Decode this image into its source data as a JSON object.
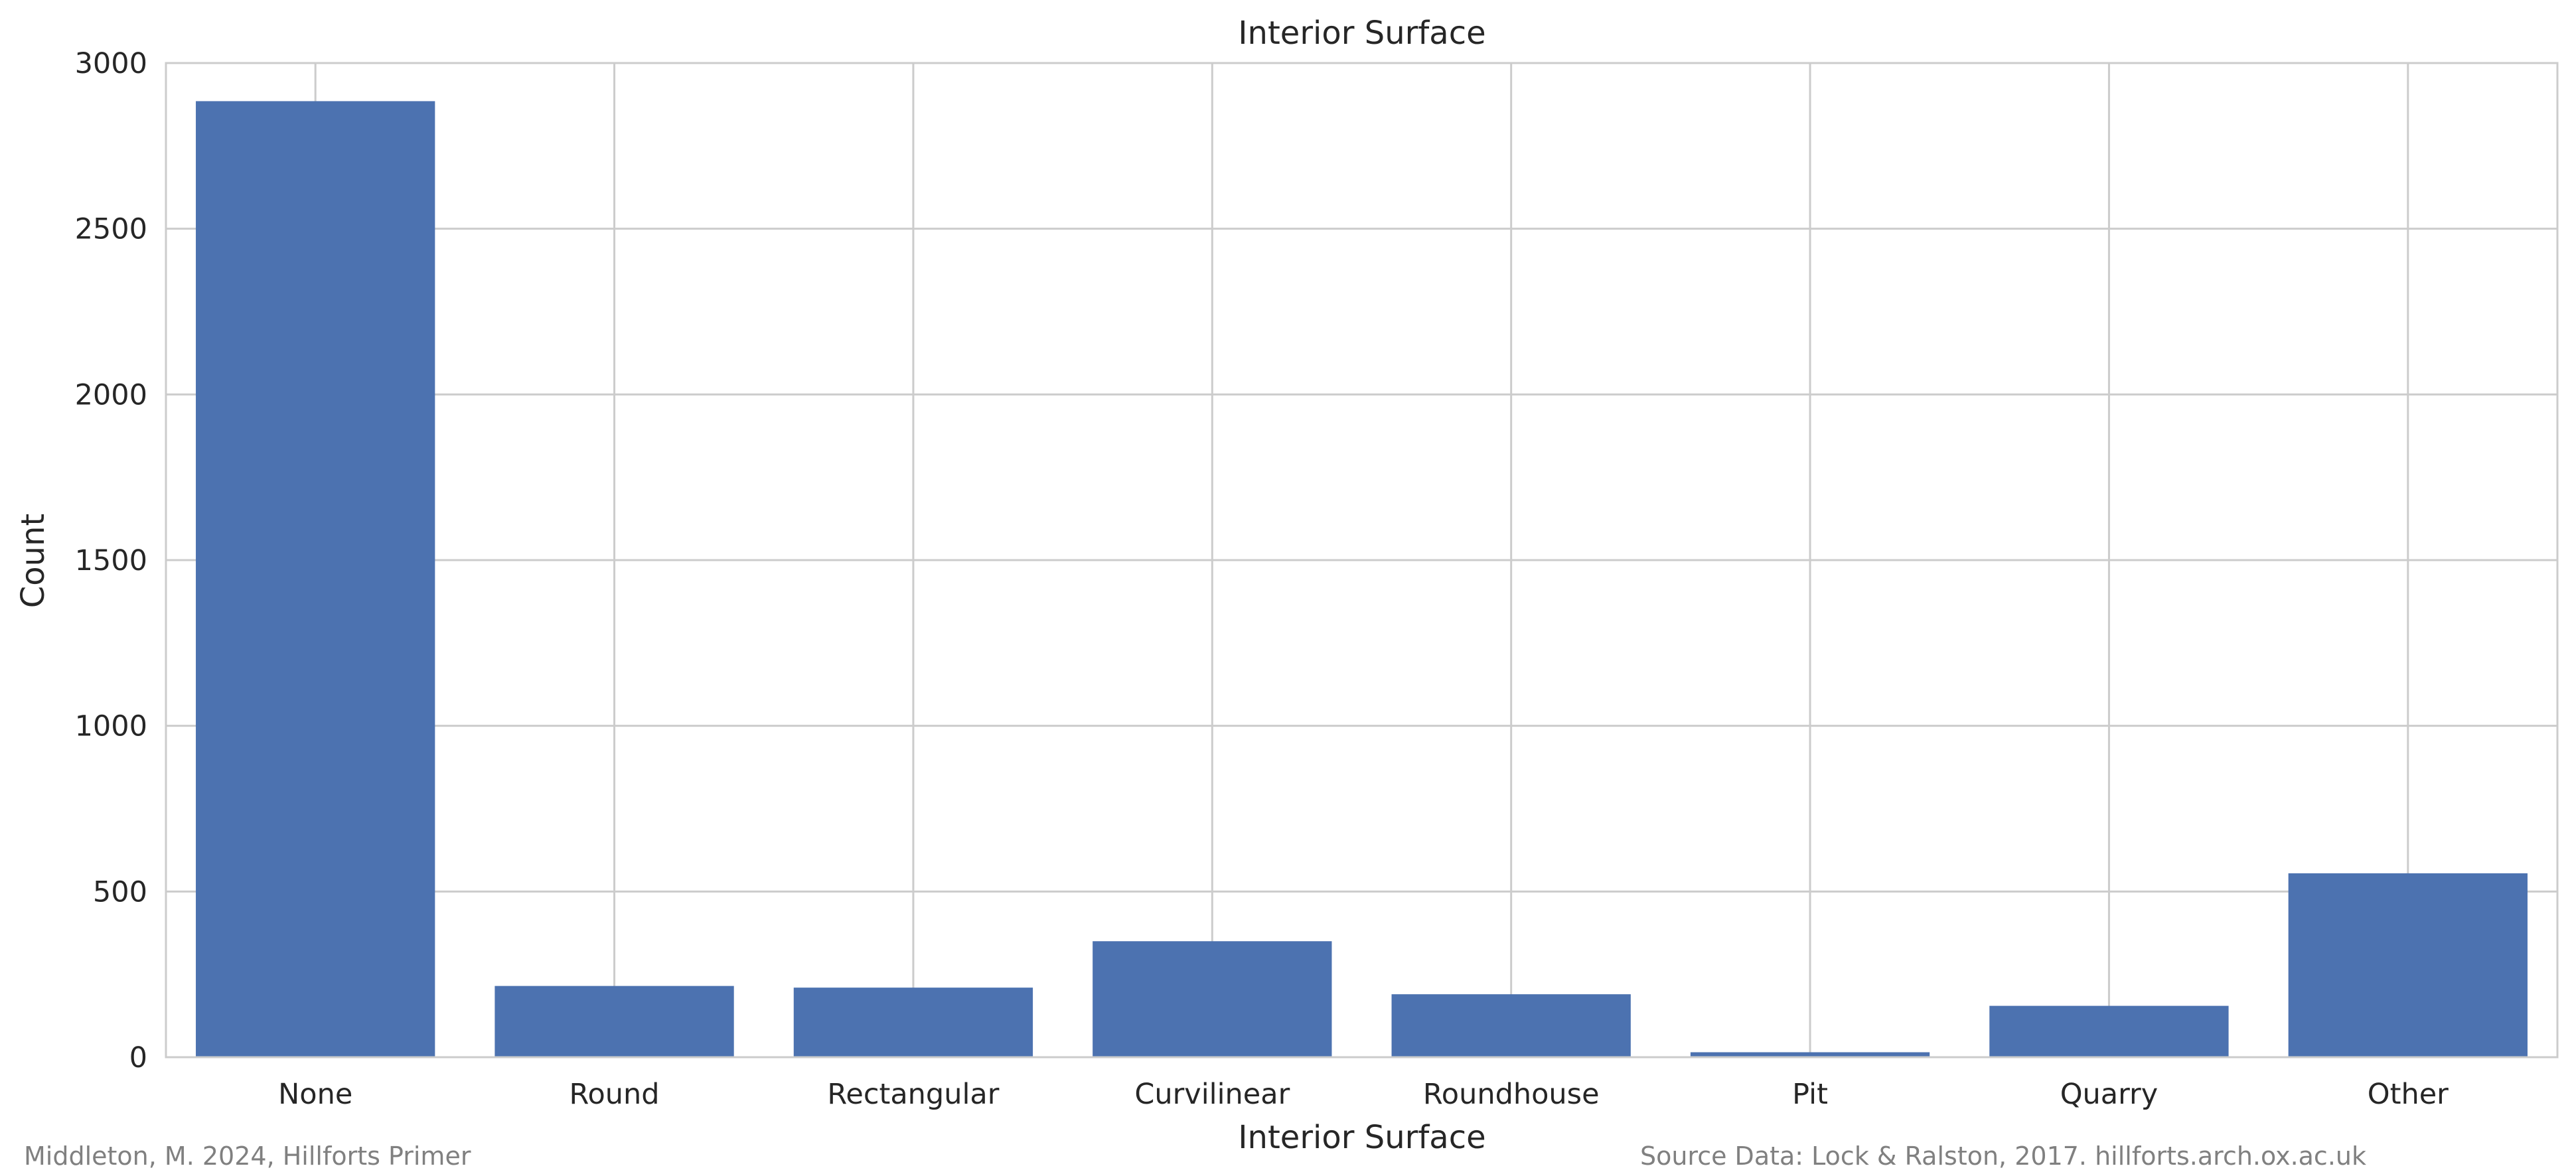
{
  "chart_data": {
    "type": "bar",
    "title": "Interior Surface",
    "xlabel": "Interior Surface",
    "ylabel": "Count",
    "categories": [
      "None",
      "Round",
      "Rectangular",
      "Curvilinear",
      "Roundhouse",
      "Pit",
      "Quarry",
      "Other"
    ],
    "values": [
      2885,
      215,
      210,
      350,
      190,
      15,
      155,
      555
    ],
    "ylim": [
      0,
      3000
    ],
    "yticks": [
      0,
      500,
      1000,
      1500,
      2000,
      2500,
      3000
    ],
    "grid": true,
    "bar_color": "#4c72b0",
    "grid_color": "#cccccc"
  },
  "footer": {
    "left": "Middleton, M. 2024, Hillforts Primer",
    "right": "Source Data: Lock & Ralston, 2017. hillforts.arch.ox.ac.uk"
  }
}
